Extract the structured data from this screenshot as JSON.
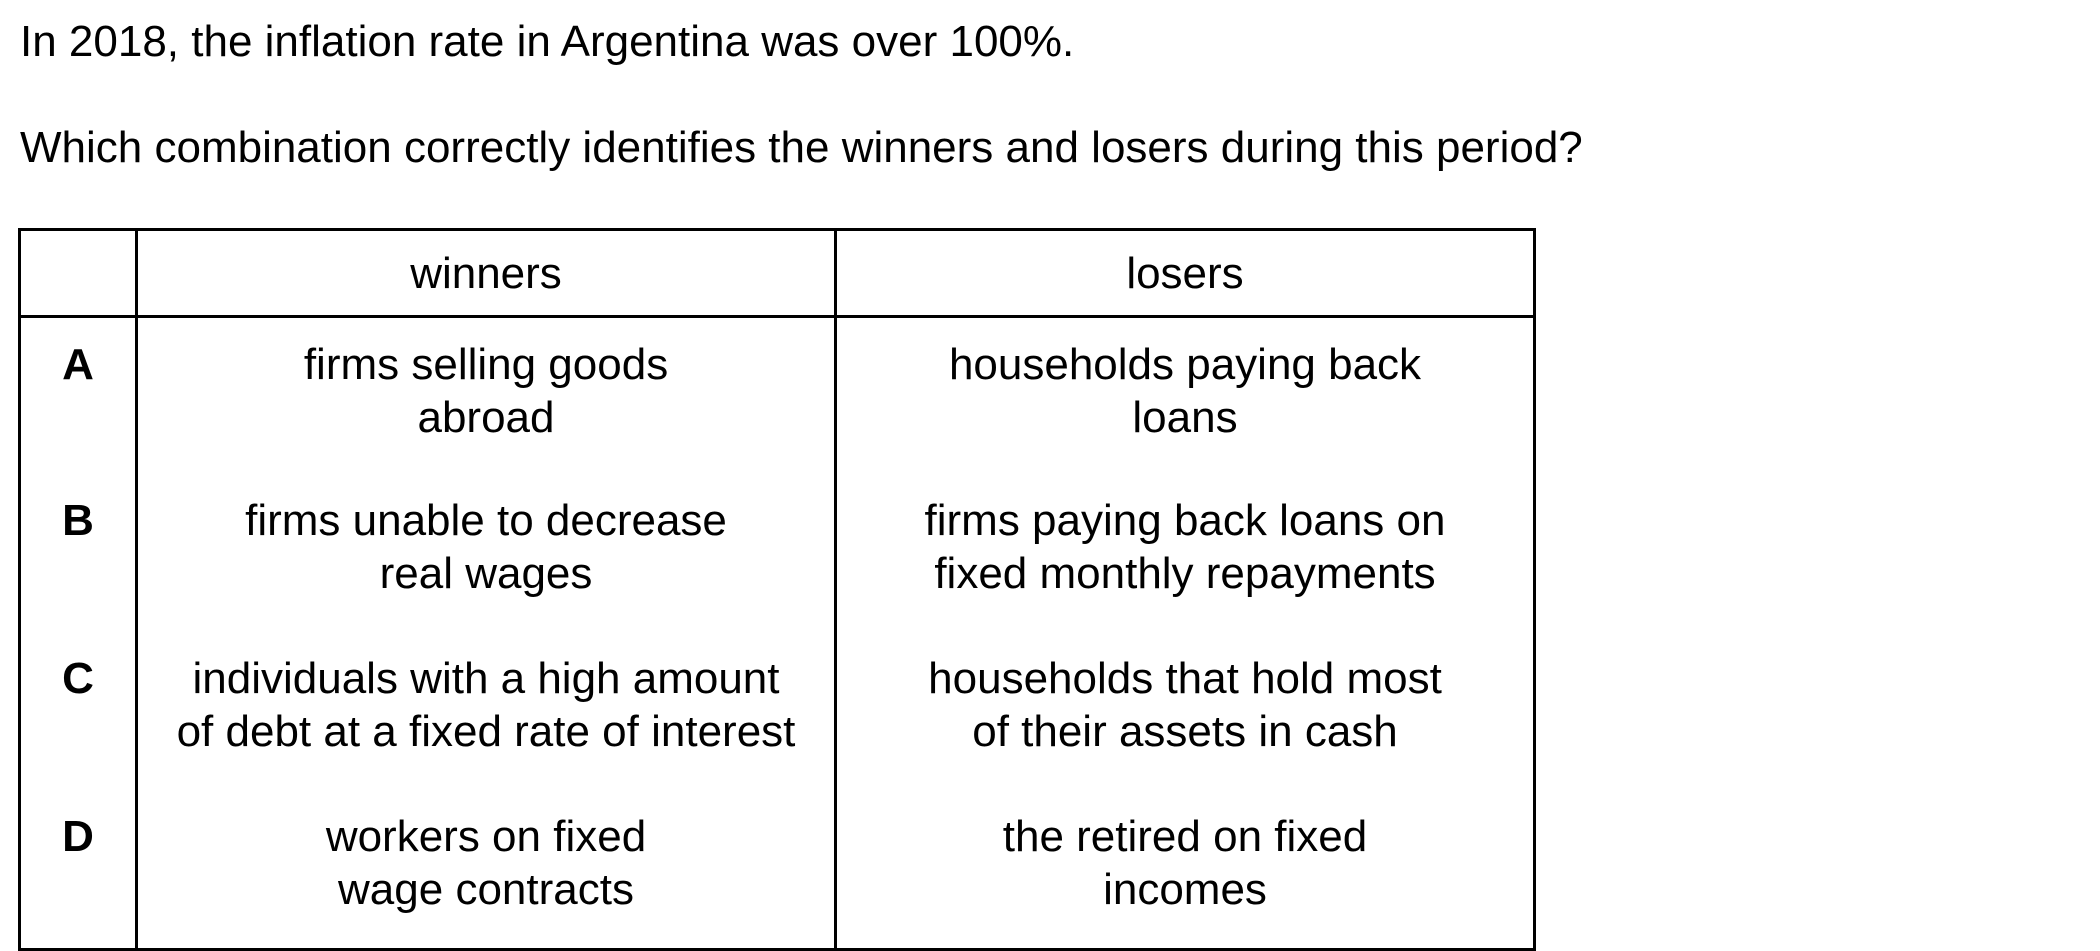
{
  "question": {
    "stem": "In 2018, the inflation rate in Argentina was over 100%.",
    "prompt": "Which combination correctly identifies the winners and losers during this period?"
  },
  "table": {
    "headers": [
      "",
      "winners",
      "losers"
    ],
    "rows": [
      {
        "letter": "A",
        "winners_line1": "firms selling goods",
        "winners_line2": "abroad",
        "losers_line1": "households paying back",
        "losers_line2": "loans"
      },
      {
        "letter": "B",
        "winners_line1": "firms unable to decrease",
        "winners_line2": "real wages",
        "losers_line1": "firms paying back loans on",
        "losers_line2": "fixed monthly repayments"
      },
      {
        "letter": "C",
        "winners_line1": "individuals with a high amount",
        "winners_line2": "of debt at a fixed rate of interest",
        "losers_line1": "households that hold most",
        "losers_line2": "of their assets in cash"
      },
      {
        "letter": "D",
        "winners_line1": "workers on fixed",
        "winners_line2": "wage contracts",
        "losers_line1": "the retired on fixed",
        "losers_line2": "incomes"
      }
    ]
  }
}
